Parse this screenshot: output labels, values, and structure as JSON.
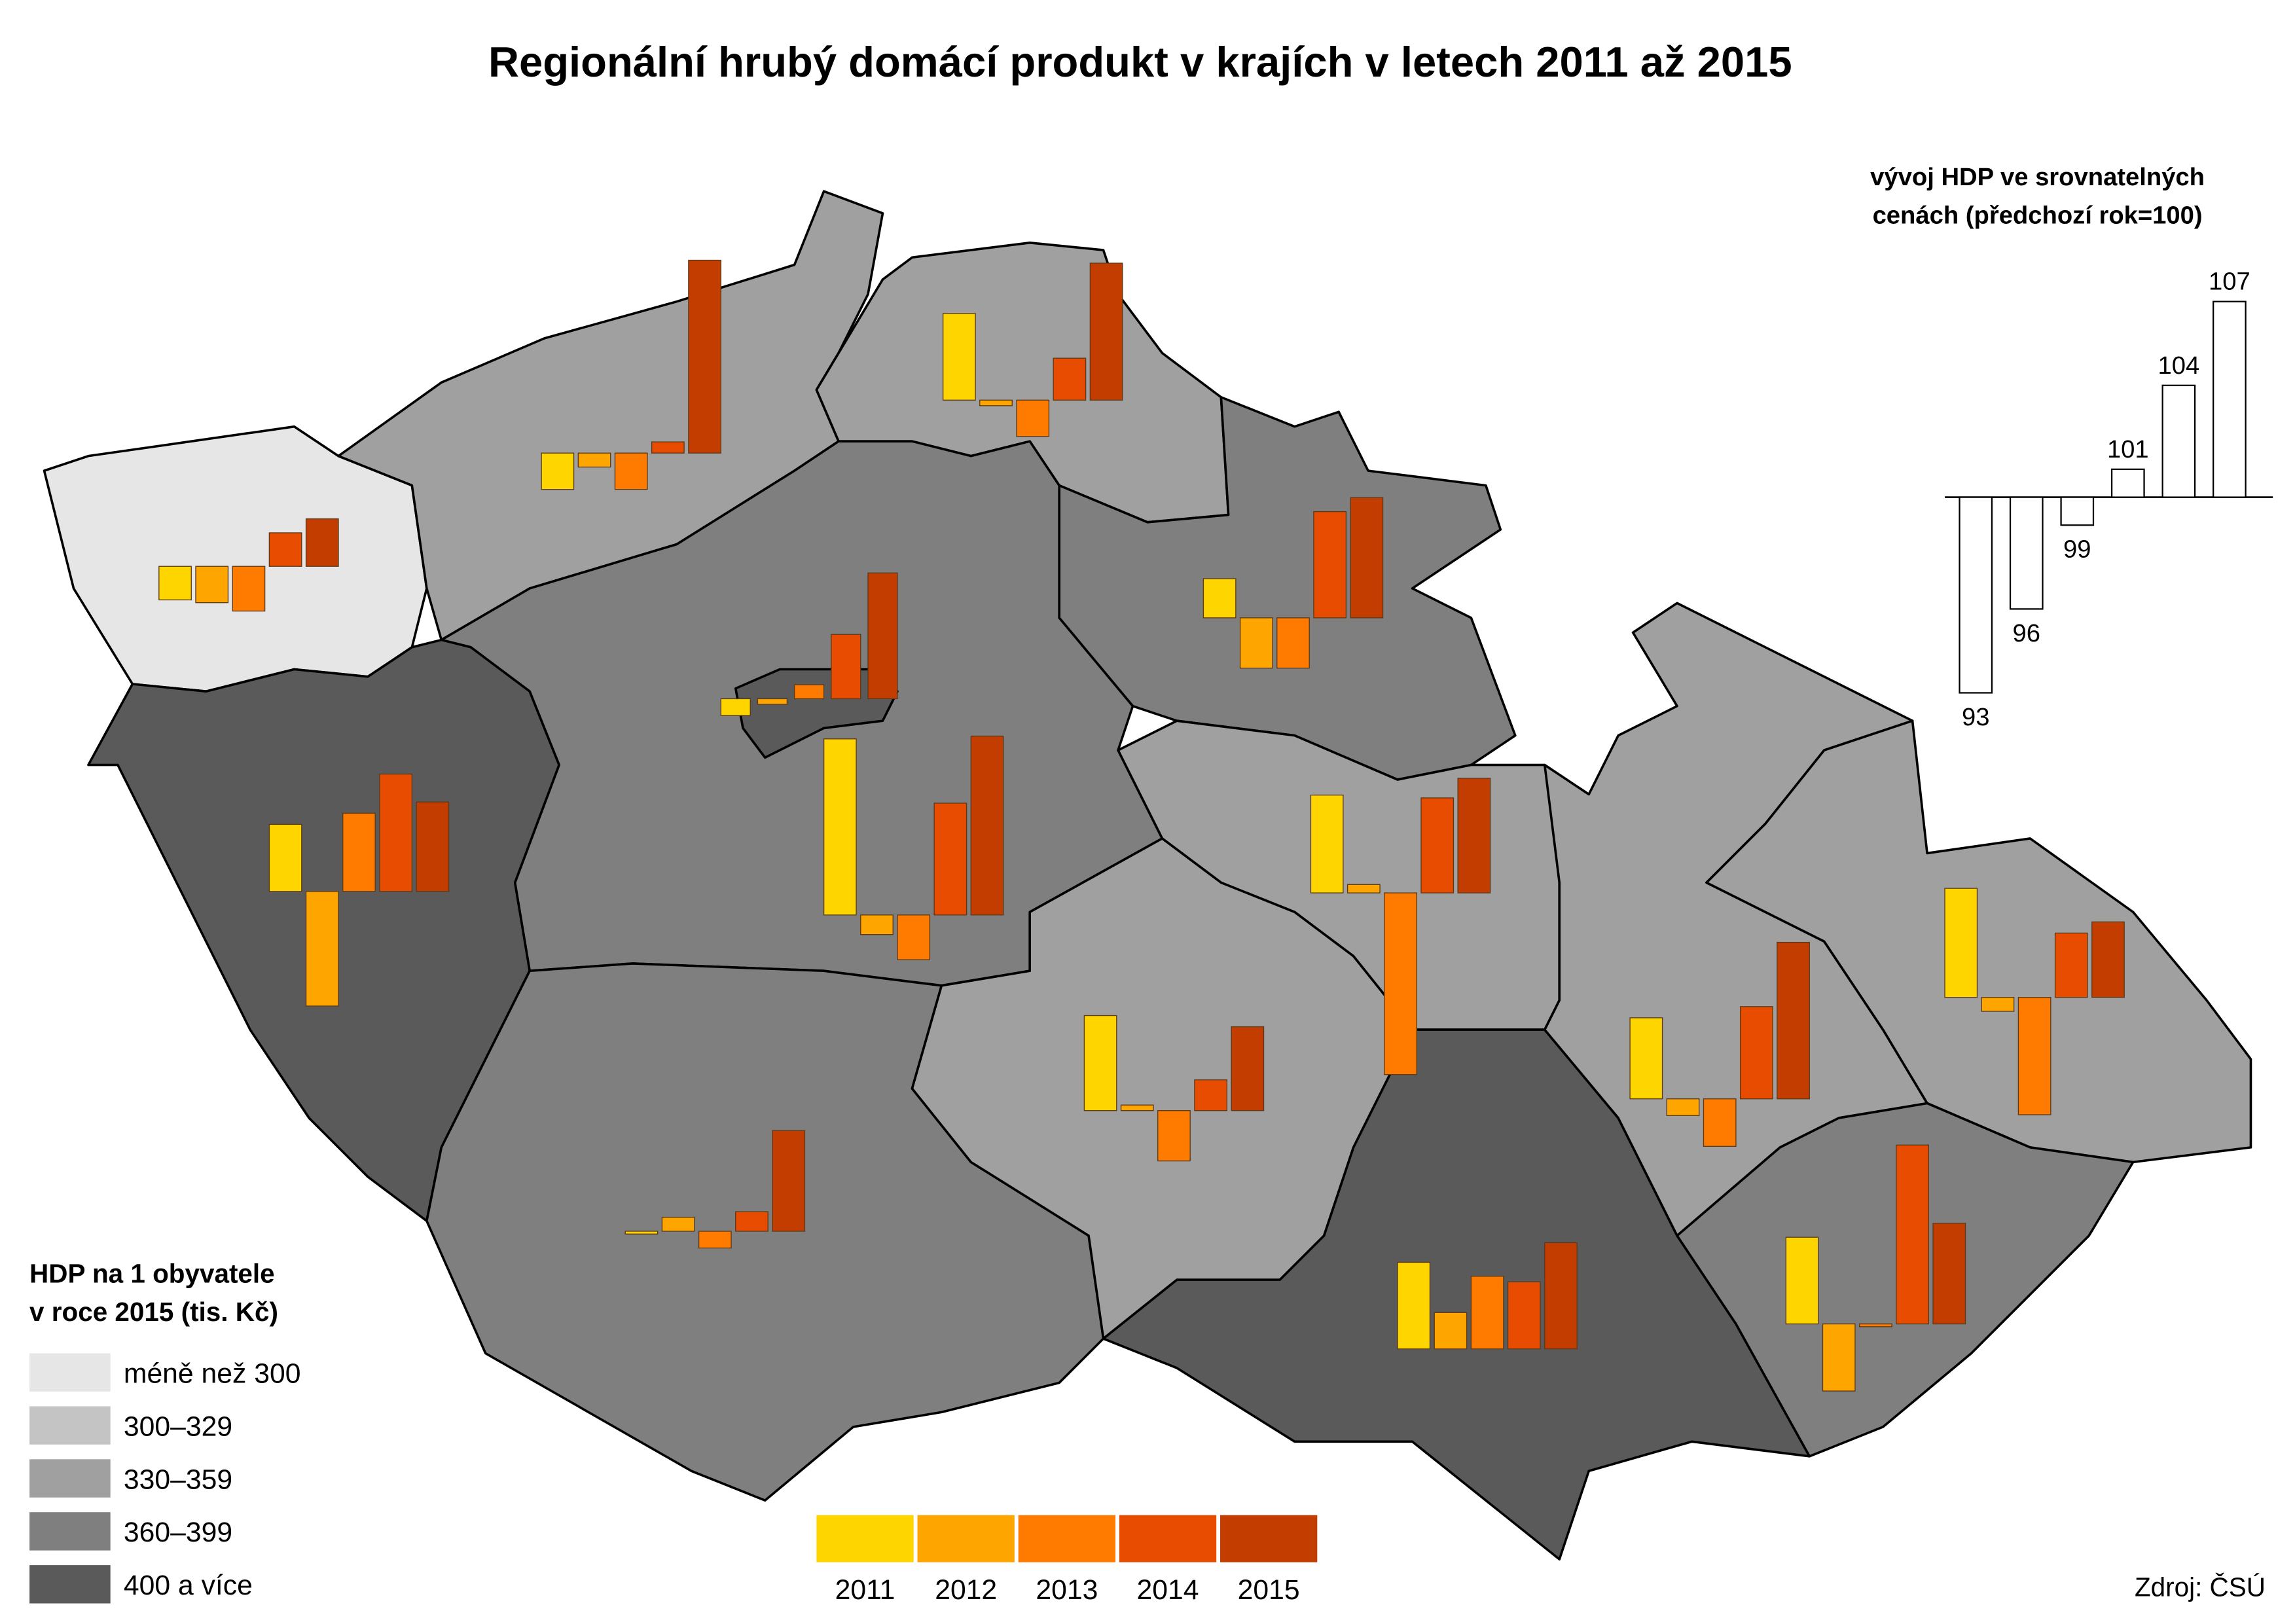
{
  "title": "Regionální hrubý domácí produkt v krajích v letech 2011 až 2015",
  "legend": {
    "title": [
      "HDP na 1 obyvatele",
      "v roce 2015 (tis. Kč)"
    ],
    "classes": [
      {
        "label": "méně než 300",
        "color": "#e6e6e6"
      },
      {
        "label": "300–329",
        "color": "#c4c4c4"
      },
      {
        "label": "330–359",
        "color": "#a0a0a0"
      },
      {
        "label": "360–399",
        "color": "#7f7f7f"
      },
      {
        "label": "400 a více",
        "color": "#5a5a5a"
      }
    ]
  },
  "years": [
    {
      "label": "2011",
      "color": "#ffd500"
    },
    {
      "label": "2012",
      "color": "#ffa500"
    },
    {
      "label": "2013",
      "color": "#ff7b00"
    },
    {
      "label": "2014",
      "color": "#e84c00"
    },
    {
      "label": "2015",
      "color": "#c43d00"
    }
  ],
  "baseline": 100,
  "regions": [
    {
      "legend_class": 0,
      "values": [
        98.8,
        98.7,
        98.4,
        101.2,
        101.7
      ]
    },
    {
      "legend_class": 2,
      "values": [
        98.7,
        99.5,
        98.7,
        100.4,
        106.9
      ]
    },
    {
      "legend_class": 2,
      "values": [
        103.1,
        99.8,
        98.7,
        101.5,
        104.9
      ]
    },
    {
      "legend_class": 3,
      "values": [
        101.4,
        98.2,
        98.2,
        103.8,
        104.3
      ]
    },
    {
      "legend_class": 3,
      "values": [
        106.3,
        99.3,
        98.4,
        104.0,
        106.4
      ]
    },
    {
      "legend_class": 4,
      "values": [
        99.4,
        99.8,
        100.5,
        102.3,
        104.5
      ]
    },
    {
      "legend_class": 4,
      "values": [
        102.4,
        95.9,
        102.8,
        104.2,
        103.2
      ]
    },
    {
      "legend_class": 3,
      "values": [
        99.9,
        100.5,
        99.4,
        100.7,
        103.6
      ]
    },
    {
      "legend_class": 2,
      "values": [
        103.5,
        100.3,
        93.5,
        103.4,
        104.1
      ]
    },
    {
      "legend_class": 2,
      "values": [
        103.4,
        100.2,
        98.2,
        101.1,
        103.0
      ]
    },
    {
      "legend_class": 4,
      "values": [
        103.1,
        101.3,
        102.6,
        102.4,
        103.8
      ]
    },
    {
      "legend_class": 2,
      "values": [
        102.9,
        99.4,
        98.3,
        103.3,
        105.6
      ]
    },
    {
      "legend_class": 2,
      "values": [
        103.9,
        99.5,
        95.8,
        102.3,
        102.7
      ]
    },
    {
      "legend_class": 3,
      "values": [
        103.1,
        97.6,
        99.9,
        106.4,
        103.6
      ]
    }
  ],
  "inset": {
    "title": [
      "vývoj HDP ve srovnatelných",
      "cenách (předchozí rok=100)"
    ],
    "values": [
      93,
      96,
      99,
      101,
      104,
      107
    ]
  },
  "source": "Zdroj: ČSÚ"
}
